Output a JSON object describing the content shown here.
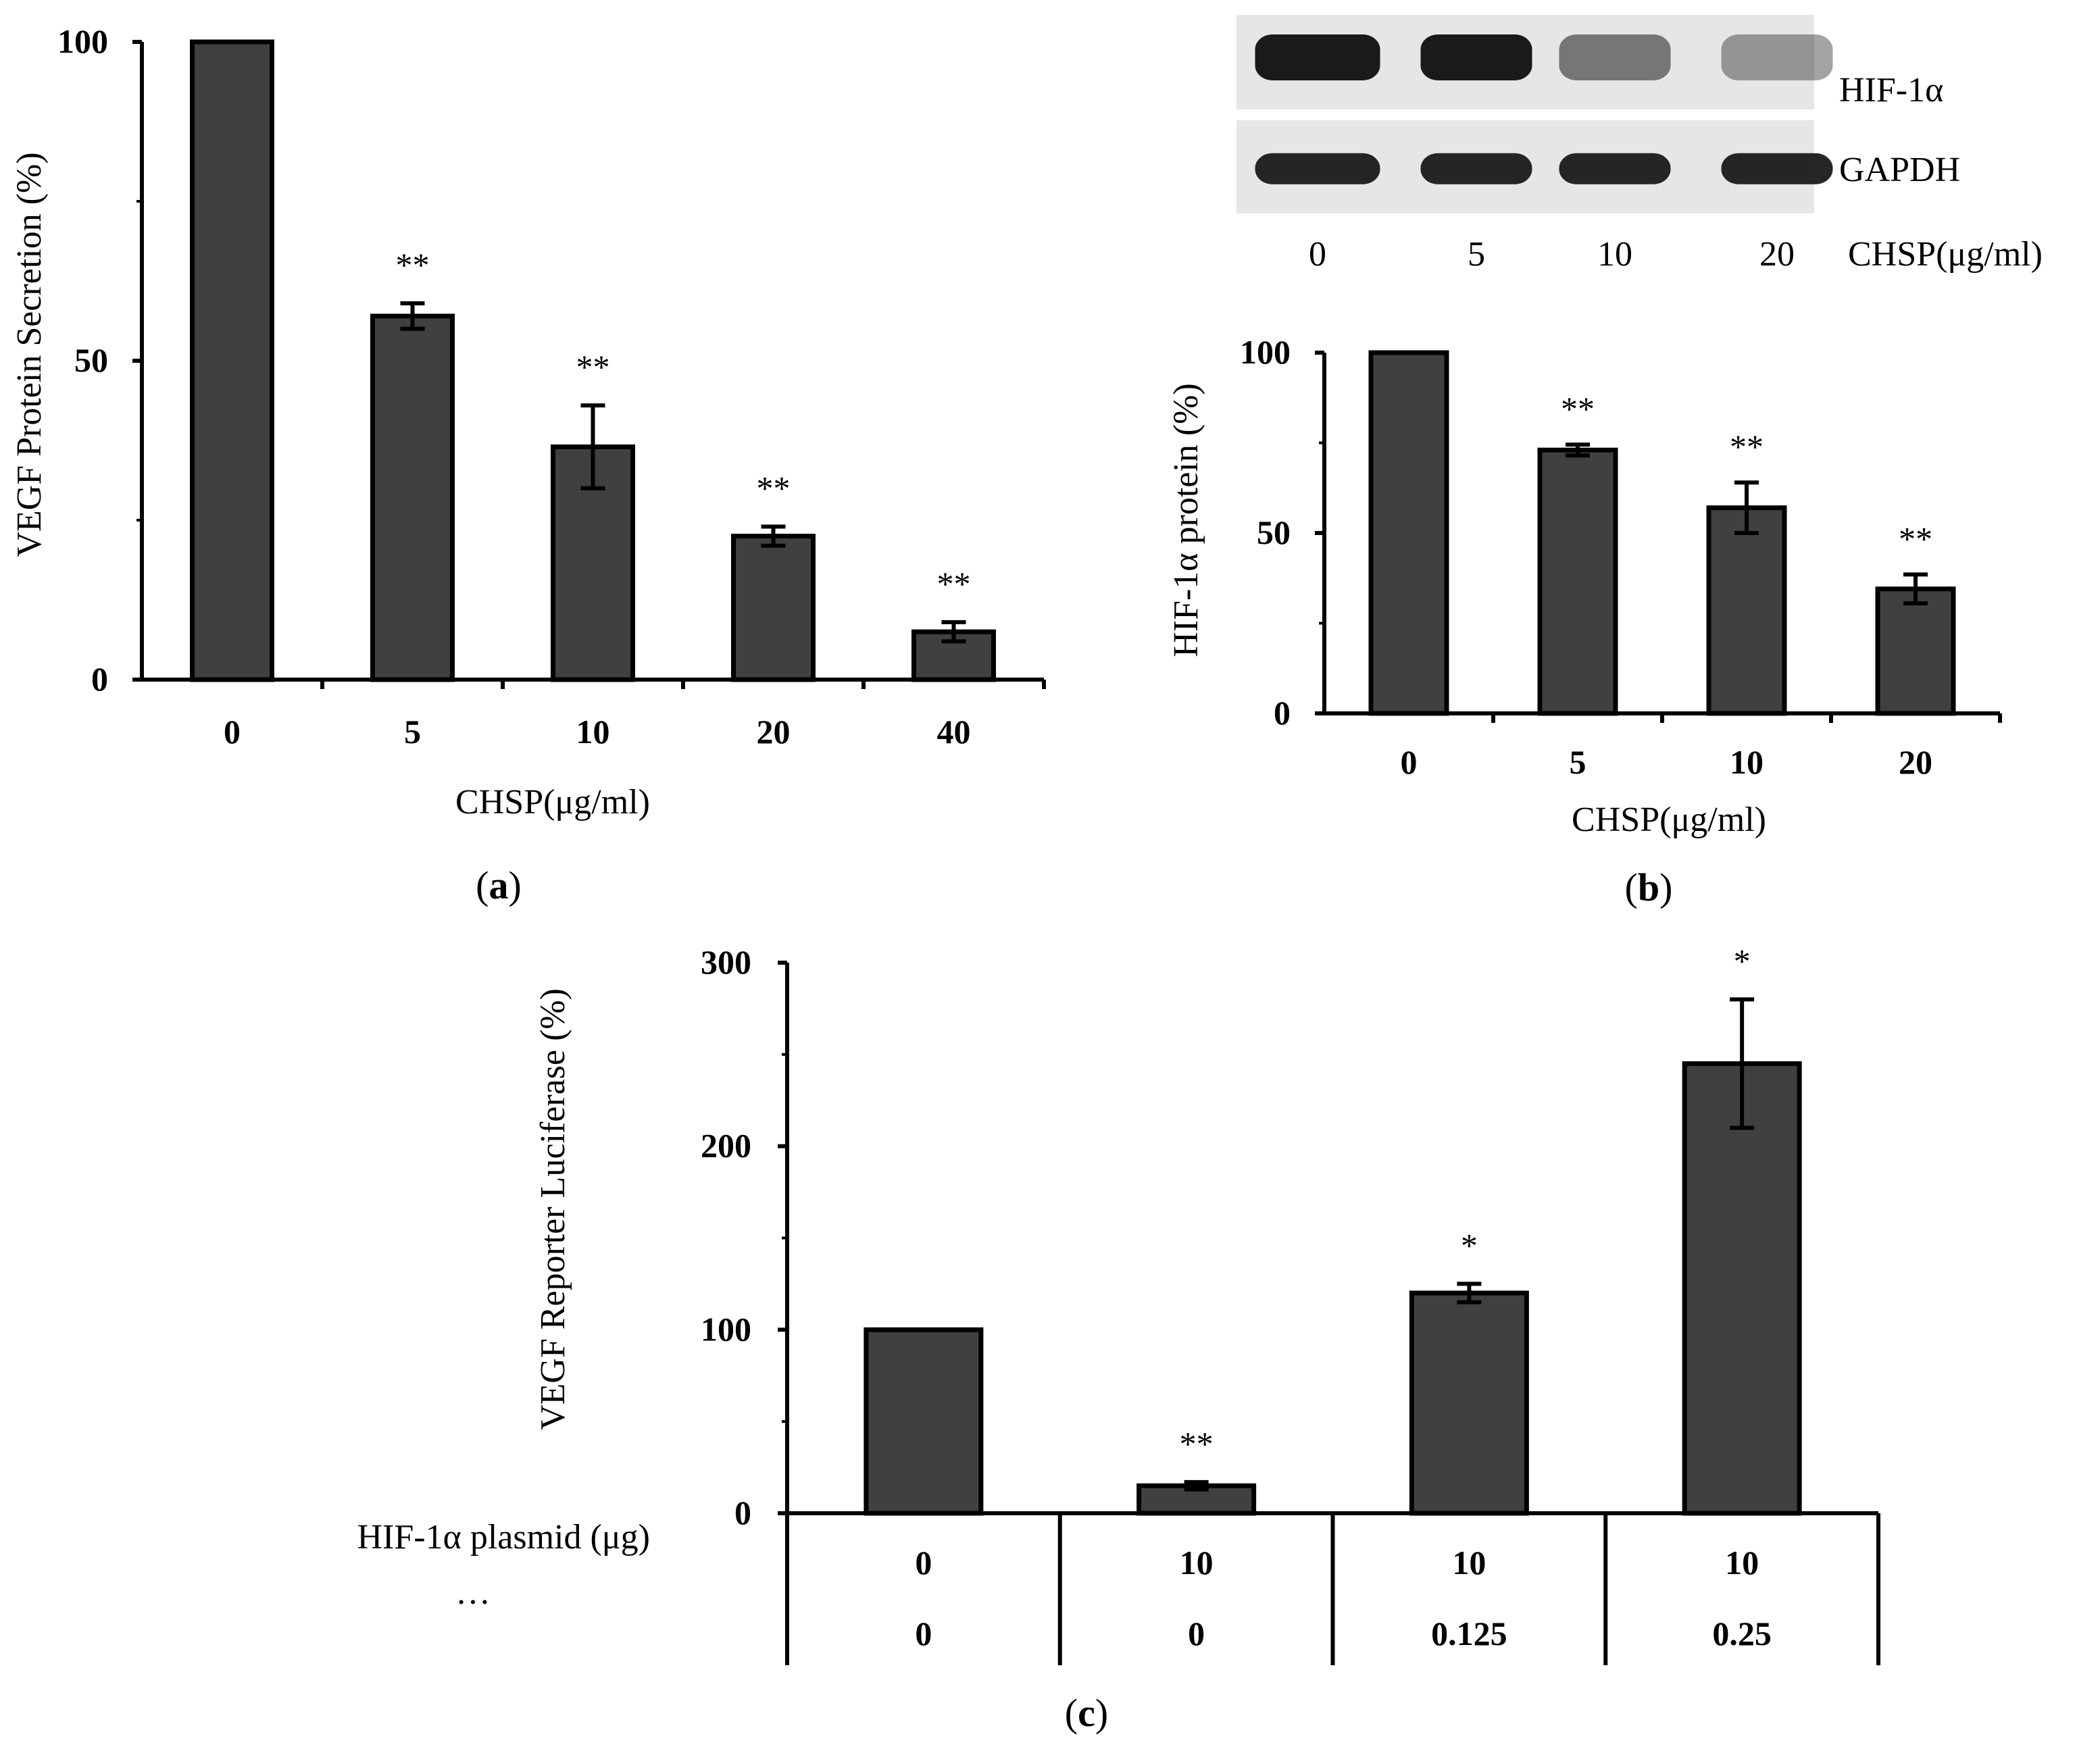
{
  "colors": {
    "bar_fill": "#404040",
    "bar_stroke": "#000000",
    "blot_background": "#e6e6e6",
    "blot_band": "#1a1a1a"
  },
  "chart_data": [
    {
      "panel": "(a)",
      "type": "bar",
      "xlabel": "CHSP(μg/ml)",
      "ylabel": "VEGF Protein Secretion (%)",
      "ylim": [
        0,
        100
      ],
      "yticks": [
        0,
        50,
        100
      ],
      "categories": [
        "0",
        "5",
        "10",
        "20",
        "40"
      ],
      "values": [
        100,
        57,
        36.5,
        22.5,
        7.5
      ],
      "errors": [
        0,
        2,
        6.5,
        1.5,
        1.5
      ],
      "significance": [
        "",
        "**",
        "**",
        "**",
        "**"
      ]
    },
    {
      "panel": "(b)",
      "type": "bar",
      "xlabel": "CHSP(μg/ml)",
      "ylabel": "HIF-1α protein (%)",
      "ylim": [
        0,
        100
      ],
      "yticks": [
        0,
        50,
        100
      ],
      "categories": [
        "0",
        "5",
        "10",
        "20"
      ],
      "values": [
        100,
        73,
        57,
        34.5
      ],
      "errors": [
        0,
        1.5,
        7,
        4
      ],
      "significance": [
        "",
        "**",
        "**",
        "**"
      ],
      "blot": {
        "rows": [
          {
            "label": "HIF-1α",
            "band_intensity": [
              1.0,
              1.0,
              0.55,
              0.4
            ]
          },
          {
            "label": "GAPDH",
            "band_intensity": [
              0.95,
              0.95,
              0.95,
              0.95
            ]
          }
        ],
        "lane_labels": [
          "0",
          "5",
          "10",
          "20"
        ],
        "axis_label": "CHSP(μg/ml)"
      }
    },
    {
      "panel": "(c)",
      "type": "bar",
      "ylabel": "VEGF Reporter Luciferase (%)",
      "ylim": [
        0,
        300
      ],
      "yticks": [
        0,
        100,
        200,
        300
      ],
      "row_labels": [
        "HIF-1α plasmid (μg)",
        "…"
      ],
      "categories_row1": [
        "0",
        "10",
        "10",
        "10"
      ],
      "categories_row2": [
        "0",
        "0",
        "0.125",
        "0.25"
      ],
      "values": [
        100,
        15,
        120,
        245
      ],
      "errors": [
        0,
        2,
        5,
        35
      ],
      "significance": [
        "",
        "**",
        "*",
        "*"
      ]
    }
  ]
}
